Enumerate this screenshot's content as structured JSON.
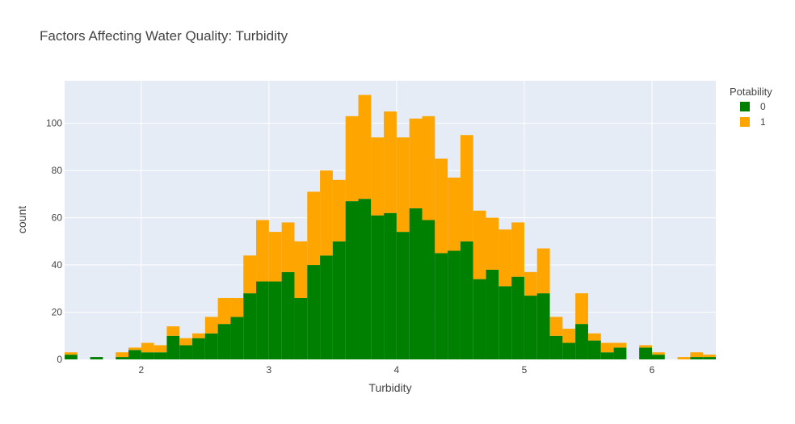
{
  "chart_data": {
    "type": "bar",
    "title": "Factors Affecting Water Quality: Turbidity",
    "xlabel": "Turbidity",
    "ylabel": "count",
    "barmode": "stack",
    "bin_width": 0.1,
    "xlim": [
      1.4,
      6.5
    ],
    "ylim": [
      0,
      118
    ],
    "x_ticks": [
      2,
      3,
      4,
      5,
      6
    ],
    "y_ticks": [
      0,
      20,
      40,
      60,
      80,
      100
    ],
    "grid": true,
    "background": "#e5ecf6",
    "legend": {
      "title": "Potability",
      "position": "top-right"
    },
    "bin_starts": [
      1.4,
      1.5,
      1.6,
      1.7,
      1.8,
      1.9,
      2.0,
      2.1,
      2.2,
      2.3,
      2.4,
      2.5,
      2.6,
      2.7,
      2.8,
      2.9,
      3.0,
      3.1,
      3.2,
      3.3,
      3.4,
      3.5,
      3.6,
      3.7,
      3.8,
      3.9,
      4.0,
      4.1,
      4.2,
      4.3,
      4.4,
      4.5,
      4.6,
      4.7,
      4.8,
      4.9,
      5.0,
      5.1,
      5.2,
      5.3,
      5.4,
      5.5,
      5.6,
      5.7,
      5.8,
      5.9,
      6.0,
      6.1,
      6.2,
      6.3,
      6.4
    ],
    "series": [
      {
        "name": "0",
        "color": "#008000",
        "values": [
          2,
          0,
          1,
          0,
          1,
          4,
          3,
          3,
          10,
          6,
          9,
          11,
          15,
          18,
          28,
          33,
          33,
          37,
          26,
          40,
          44,
          50,
          67,
          68,
          61,
          62,
          54,
          64,
          59,
          45,
          46,
          50,
          34,
          38,
          31,
          35,
          27,
          28,
          10,
          7,
          15,
          8,
          3,
          5,
          0,
          5,
          2,
          0,
          0,
          1,
          1
        ]
      },
      {
        "name": "1",
        "color": "#ffa500",
        "values": [
          1,
          0,
          0,
          0,
          2,
          1,
          4,
          3,
          4,
          3,
          2,
          7,
          11,
          8,
          16,
          26,
          21,
          21,
          24,
          31,
          36,
          26,
          36,
          44,
          33,
          43,
          40,
          38,
          44,
          40,
          31,
          45,
          29,
          22,
          24,
          23,
          10,
          19,
          8,
          6,
          13,
          3,
          4,
          2,
          0,
          1,
          1,
          0,
          1,
          2,
          1
        ]
      }
    ]
  }
}
